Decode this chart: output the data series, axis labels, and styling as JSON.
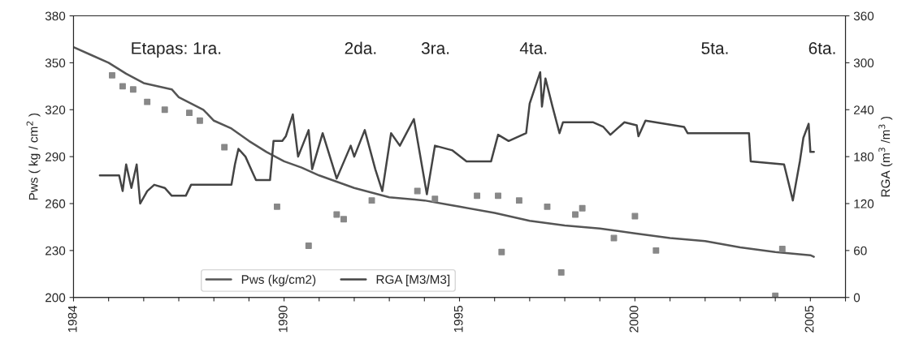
{
  "chart_data": {
    "type": "line",
    "ylabel": "Pws ( kg / cm$^{2}$ )",
    "y2label": "RGA (m$^{3}$ /m$^{3}$ )",
    "xlim": [
      1984,
      2006
    ],
    "xticks": [
      1984,
      {
        "value": 1985,
        "label": null
      },
      {
        "value": 1986,
        "label": null
      },
      {
        "value": 1987,
        "label": null
      },
      {
        "value": 1988,
        "label": null
      },
      {
        "value": 1989,
        "label": null
      },
      1990,
      {
        "value": 1991,
        "label": null
      },
      {
        "value": 1992,
        "label": null
      },
      {
        "value": 1993,
        "label": null
      },
      {
        "value": 1994,
        "label": null
      },
      1995,
      {
        "value": 1996,
        "label": null
      },
      {
        "value": 1997,
        "label": null
      },
      {
        "value": 1998,
        "label": null
      },
      {
        "value": 1999,
        "label": null
      },
      2000,
      {
        "value": 2001,
        "label": null
      },
      {
        "value": 2002,
        "label": null
      },
      {
        "value": 2003,
        "label": null
      },
      {
        "value": 2004,
        "label": null
      },
      2005,
      {
        "value": 2006,
        "label": null
      }
    ],
    "ylim": [
      200,
      380
    ],
    "yticks": [
      200,
      230,
      260,
      290,
      320,
      350,
      380
    ],
    "y2lim": [
      0,
      360
    ],
    "y2ticks": [
      0,
      60,
      120,
      180,
      240,
      300,
      360
    ],
    "grid": false,
    "legend": "bottom",
    "marker": "none",
    "line_style": "solid",
    "series": [
      {
        "name": "Pws (kg/cm2)",
        "color": "#555555",
        "x": [
          1984,
          1984.5,
          1985,
          1985.5,
          1986,
          1986.8,
          1987,
          1987.7,
          1988,
          1988.5,
          1989,
          1989.5,
          1990,
          1990.5,
          1991,
          1991.5,
          1992,
          1992.5,
          1993,
          1994,
          1995,
          1996,
          1997,
          1998,
          1999,
          2000,
          2001,
          2002,
          2003,
          2004,
          2005,
          2005.1
        ],
        "values": [
          360,
          355,
          350,
          343,
          337,
          333,
          328,
          320,
          313,
          308,
          300,
          293,
          287,
          283,
          278,
          274,
          270,
          267,
          264,
          262,
          258,
          254,
          249,
          246,
          244,
          241,
          238,
          236,
          232,
          229,
          227,
          226
        ]
      },
      {
        "name": "RGA [M3/M3]",
        "color": "#444444",
        "axis": "y2",
        "x": [
          1984.75,
          1985.3,
          1985.4,
          1985.5,
          1985.65,
          1985.8,
          1985.9,
          1986.1,
          1986.3,
          1986.6,
          1986.8,
          1987.2,
          1987.35,
          1988.5,
          1988.6,
          1988.7,
          1988.9,
          1989.1,
          1989.2,
          1989.6,
          1989.7,
          1989.95,
          1990.05,
          1990.25,
          1990.4,
          1990.7,
          1990.8,
          1991.1,
          1991.5,
          1991.9,
          1992.0,
          1992.3,
          1992.6,
          1992.8,
          1993.05,
          1993.3,
          1993.7,
          1994.07,
          1994.3,
          1994.8,
          1995.2,
          1995.9,
          1996.1,
          1996.4,
          1996.9,
          1997.0,
          1997.3,
          1997.35,
          1997.45,
          1997.65,
          1997.85,
          1997.95,
          1998.8,
          1999.1,
          1999.3,
          1999.7,
          2000.05,
          2000.1,
          2000.3,
          2001.4,
          2001.5,
          2003.25,
          2003.3,
          2004.25,
          2004.5,
          2004.7,
          2004.8,
          2004.95,
          2005.0,
          2005.1
        ],
        "values": [
          156,
          156,
          136,
          170,
          140,
          170,
          120,
          136,
          144,
          140,
          130,
          130,
          144,
          144,
          170,
          190,
          180,
          160,
          150,
          150,
          200,
          200,
          206,
          234,
          180,
          214,
          164,
          210,
          152,
          194,
          180,
          214,
          164,
          136,
          210,
          194,
          228,
          132,
          194,
          188,
          174,
          174,
          208,
          200,
          210,
          248,
          288,
          244,
          280,
          244,
          210,
          224,
          224,
          218,
          208,
          224,
          220,
          206,
          226,
          218,
          210,
          210,
          174,
          170,
          124,
          174,
          204,
          222,
          186,
          186
        ]
      },
      {
        "color": "#888888",
        "type": "scatter",
        "marker": "square",
        "x": [
          1985.1,
          1985.4,
          1985.7,
          1986.1,
          1986.6,
          1987.3,
          1987.6,
          1988.3,
          1989.8,
          1990.7,
          1991.5,
          1991.7,
          1992.5,
          1993.8,
          1994.3,
          1995.5,
          1996.1,
          1996.2,
          1996.7,
          1997.5,
          1997.9,
          1998.3,
          1998.5,
          1999.4,
          2000.0,
          2000.6,
          2004.0,
          2004.2
        ],
        "values": [
          342,
          335,
          333,
          325,
          320,
          318,
          313,
          296,
          258,
          233,
          253,
          250,
          262,
          268,
          263,
          265,
          265,
          229,
          262,
          258,
          216,
          253,
          257,
          238,
          252,
          230,
          201,
          231
        ]
      }
    ],
    "annotations": [
      "Etapas: 1ra.",
      "2da.",
      "3ra.",
      "4ta.",
      "5ta.",
      "6ta."
    ]
  }
}
